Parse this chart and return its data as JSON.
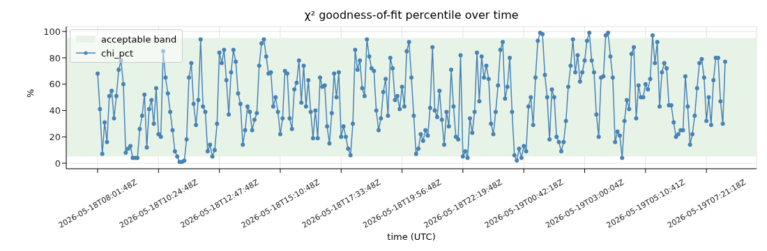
{
  "chart_data": {
    "type": "line",
    "title": "χ² goodness-of-fit percentile over time",
    "xlabel": "time (UTC)",
    "ylabel": "%",
    "categories": [
      "2026-05-18T08:01:48Z",
      null,
      null,
      null,
      null,
      null,
      null,
      null,
      null,
      null,
      null,
      null,
      null,
      null,
      null,
      null,
      null,
      null,
      null,
      null,
      null,
      null,
      null,
      null,
      null,
      null,
      "2026-05-18T10:24:48Z",
      null,
      null,
      null,
      null,
      null,
      null,
      null,
      null,
      null,
      null,
      null,
      null,
      null,
      null,
      null,
      null,
      null,
      null,
      null,
      null,
      null,
      null,
      null,
      null,
      null,
      "2026-05-18T12:47:48Z",
      null,
      null,
      null,
      null,
      null,
      null,
      null,
      null,
      null,
      null,
      null,
      null,
      null,
      null,
      null,
      null,
      null,
      null,
      null,
      null,
      null,
      null,
      null,
      null,
      null,
      "2026-05-18T15:10:48Z",
      null,
      null,
      null,
      null,
      null,
      null,
      null,
      null,
      null,
      null,
      null,
      null,
      null,
      null,
      null,
      null,
      null,
      null,
      null,
      null,
      null,
      null,
      null,
      null,
      null,
      "2026-05-18T17:33:48Z",
      null,
      null,
      null,
      null,
      null,
      null,
      null,
      null,
      null,
      null,
      null,
      null,
      null,
      null,
      null,
      null,
      null,
      null,
      null,
      null,
      null,
      null,
      null,
      null,
      null,
      "2026-05-18T19:56:48Z",
      null,
      null,
      null,
      null,
      null,
      null,
      null,
      null,
      null,
      null,
      null,
      null,
      null,
      null,
      null,
      null,
      null,
      null,
      null,
      null,
      null,
      null,
      null,
      null,
      null,
      "2026-05-18T22:19:48Z",
      null,
      null,
      null,
      null,
      null,
      null,
      null,
      null,
      null,
      null,
      null,
      null,
      null,
      null,
      null,
      null,
      null,
      null,
      null,
      null,
      null,
      null,
      null,
      null,
      null,
      "2026-05-19T00:42:18Z",
      null,
      null,
      null,
      null,
      null,
      null,
      null,
      null,
      null,
      null,
      null,
      null,
      null,
      null,
      null,
      null,
      null,
      null,
      null,
      null,
      null,
      null,
      null,
      null,
      null,
      "2026-05-19T03:00:04Z",
      null,
      null,
      null,
      null,
      null,
      null,
      null,
      null,
      null,
      null,
      null,
      null,
      null,
      null,
      null,
      null,
      null,
      null,
      null,
      null,
      null,
      null,
      null,
      null,
      null,
      "2026-05-19T05:10:41Z",
      null,
      null,
      null,
      null,
      null,
      null,
      null,
      null,
      null,
      null,
      null,
      null,
      null,
      null,
      null,
      null,
      null,
      null,
      null,
      null,
      null,
      null,
      null,
      null,
      null,
      "2026-05-19T07:21:18Z",
      null,
      null,
      null,
      null,
      null,
      null,
      null,
      null
    ],
    "series": [
      {
        "name": "chi_pct",
        "color": "#4682b4",
        "values": [
          68,
          41,
          7,
          31,
          16,
          51,
          55,
          34,
          51,
          71,
          78,
          60,
          8,
          11,
          13,
          4,
          4,
          4,
          26,
          36,
          52,
          12,
          41,
          48,
          30,
          57,
          22,
          20,
          85,
          65,
          53,
          39,
          25,
          9,
          5,
          1,
          1,
          2,
          18,
          65,
          76,
          45,
          29,
          48,
          94,
          43,
          39,
          9,
          14,
          5,
          10,
          30,
          84,
          76,
          86,
          63,
          37,
          69,
          86,
          77,
          53,
          45,
          14,
          25,
          43,
          39,
          25,
          33,
          38,
          74,
          91,
          94,
          81,
          68,
          69,
          43,
          50,
          39,
          22,
          34,
          70,
          68,
          34,
          26,
          56,
          61,
          78,
          46,
          74,
          43,
          63,
          39,
          19,
          40,
          19,
          65,
          58,
          59,
          28,
          15,
          38,
          68,
          50,
          69,
          20,
          28,
          20,
          11,
          6,
          30,
          86,
          71,
          78,
          57,
          51,
          94,
          81,
          72,
          70,
          40,
          25,
          34,
          54,
          64,
          36,
          80,
          72,
          48,
          51,
          41,
          58,
          43,
          85,
          92,
          65,
          36,
          7,
          11,
          22,
          17,
          25,
          21,
          42,
          88,
          40,
          35,
          55,
          33,
          14,
          39,
          28,
          71,
          43,
          20,
          18,
          82,
          5,
          9,
          4,
          34,
          23,
          39,
          84,
          47,
          81,
          65,
          74,
          64,
          30,
          22,
          39,
          59,
          86,
          92,
          49,
          58,
          80,
          39,
          6,
          2,
          11,
          4,
          13,
          9,
          43,
          50,
          29,
          65,
          93,
          99,
          98,
          67,
          50,
          18,
          56,
          50,
          20,
          16,
          9,
          16,
          32,
          58,
          74,
          94,
          69,
          82,
          62,
          69,
          78,
          93,
          99,
          78,
          69,
          37,
          20,
          65,
          66,
          97,
          99,
          81,
          65,
          16,
          24,
          21,
          4,
          32,
          48,
          41,
          83,
          88,
          34,
          59,
          50,
          50,
          60,
          56,
          64,
          97,
          76,
          92,
          43,
          69,
          76,
          72,
          44,
          44,
          31,
          20,
          22,
          25,
          25,
          66,
          43,
          14,
          22,
          36,
          57,
          76,
          79,
          65,
          32,
          50,
          29,
          63,
          80,
          80,
          47,
          30,
          77
        ]
      }
    ],
    "ylim": [
      -4.2,
      103.8
    ],
    "yticks": [
      0,
      20,
      40,
      60,
      80,
      100
    ],
    "bands": [
      {
        "axis": "y",
        "from": 5,
        "to": 95,
        "label": "acceptable band",
        "color": "#e8f3e8"
      }
    ],
    "grid": true,
    "legend": "top left",
    "marker": "circle",
    "line_style": "solid"
  }
}
